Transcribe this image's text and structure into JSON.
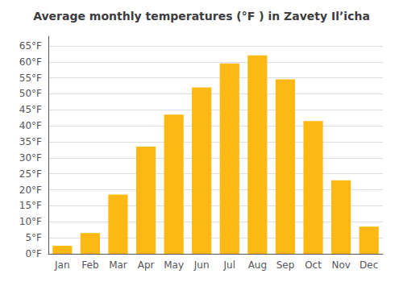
{
  "chart_data": {
    "type": "bar",
    "title": "Average monthly temperatures (°F ) in Zavety Ilʼicha",
    "categories": [
      "Jan",
      "Feb",
      "Mar",
      "Apr",
      "May",
      "Jun",
      "Jul",
      "Aug",
      "Sep",
      "Oct",
      "Nov",
      "Dec"
    ],
    "values": [
      2.5,
      6.5,
      18.5,
      33.5,
      43.5,
      52,
      59.5,
      62,
      54.5,
      41.5,
      23,
      8.5
    ],
    "color": "#FDB813",
    "ylim": [
      0,
      68
    ],
    "yticks": [
      {
        "value": 0,
        "label": "0°F"
      },
      {
        "value": 5,
        "label": "5°F"
      },
      {
        "value": 10,
        "label": "10°F"
      },
      {
        "value": 15,
        "label": "15°F"
      },
      {
        "value": 20,
        "label": "20°F"
      },
      {
        "value": 25,
        "label": "25°F"
      },
      {
        "value": 30,
        "label": "30°F"
      },
      {
        "value": 35,
        "label": "35°F"
      },
      {
        "value": 40,
        "label": "40°F"
      },
      {
        "value": 45,
        "label": "45°F"
      },
      {
        "value": 50,
        "label": "50°F"
      },
      {
        "value": 55,
        "label": "55°F"
      },
      {
        "value": 60,
        "label": "60°F"
      },
      {
        "value": 65,
        "label": "65°F"
      }
    ],
    "grid": true
  }
}
